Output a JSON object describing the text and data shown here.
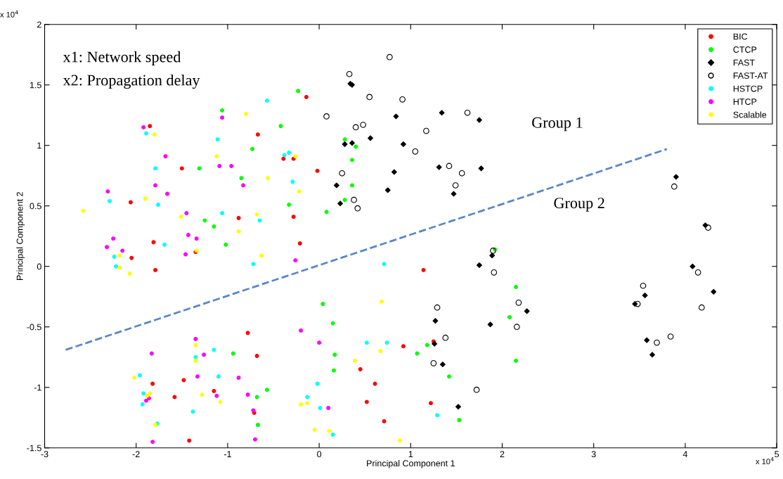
{
  "chart_data": {
    "type": "scatter",
    "xlabel": "Principal Component 1",
    "ylabel": "Principal Component 2",
    "xlim": [
      -3,
      5
    ],
    "xticks": [
      -3,
      -2,
      -1,
      0,
      1,
      2,
      3,
      4,
      5
    ],
    "ylim": [
      -1.5,
      2
    ],
    "yticks": [
      -1.5,
      -1,
      -0.5,
      0,
      0.5,
      1,
      1.5,
      2
    ],
    "grid": false,
    "legend": "top right",
    "marker": "circle",
    "annotations": [
      "x1: Network speed",
      "x2: Propagation delay",
      "Group 1",
      "Group 2",
      "x 10$^{4}$",
      "x 10$^{4}$"
    ],
    "series": [
      {
        "name": "BIC",
        "color": "#ff0000",
        "x": [
          -0.14,
          -1.85,
          -1.5,
          -0.88,
          -2.06,
          -1.81,
          -2.05,
          -1.79,
          -1.35,
          -0.67,
          -0.39,
          -0.28,
          -0.28,
          -0.02,
          -0.21,
          1.14,
          -0.78,
          -0.68,
          -1.82,
          -1.48,
          -1.15,
          -1.58,
          -0.71,
          -1.42,
          0.92,
          0.45,
          0.61,
          0.52,
          0.71,
          1.22,
          1.25
        ],
        "values": [
          1.4,
          1.16,
          0.81,
          0.4,
          0.53,
          0.2,
          0.07,
          -0.03,
          0.12,
          1.09,
          0.89,
          0.89,
          0.41,
          0.79,
          0.19,
          -0.03,
          -0.55,
          -0.74,
          -0.97,
          -0.94,
          -1.03,
          -1.08,
          -1.21,
          -1.44,
          -0.66,
          -0.85,
          -0.97,
          -1.12,
          -1.28,
          -1.13,
          -0.62
        ]
      },
      {
        "name": "CTCP",
        "color": "#00ff00",
        "x": [
          -1.06,
          -0.42,
          -0.73,
          -1.31,
          -0.85,
          -0.33,
          -1.25,
          -1.15,
          -1.02,
          -0.23,
          0.28,
          0.4,
          0.36,
          0.36,
          0.28,
          0.08,
          1.92,
          -0.94,
          -0.57,
          -0.68,
          -0.67,
          0.04,
          0.15,
          0.17,
          0.16,
          1.18,
          1.07,
          1.42,
          1.53,
          2.15,
          2.08,
          2.15
        ],
        "values": [
          1.29,
          1.16,
          0.97,
          0.81,
          0.73,
          0.51,
          0.38,
          0.33,
          0.18,
          1.45,
          1.05,
          0.99,
          0.88,
          0.67,
          0.55,
          0.45,
          0.14,
          -0.72,
          -1.02,
          -1.08,
          -1.31,
          -0.31,
          -0.47,
          -0.73,
          -0.86,
          -0.65,
          -0.72,
          -0.91,
          -1.27,
          -0.17,
          -0.42,
          -0.78
        ]
      },
      {
        "name": "FAST",
        "color": "#000000",
        "marker": "diamond",
        "x": [
          0.34,
          0.36,
          0.84,
          1.34,
          1.75,
          0.56,
          0.28,
          0.36,
          0.92,
          0.82,
          1.31,
          1.77,
          0.75,
          0.19,
          0.23,
          1.47,
          1.89,
          1.75,
          3.9,
          4.22,
          4.08,
          4.31,
          3.56,
          3.45,
          2.27,
          3.58,
          3.64,
          1.27,
          1.26,
          1.35,
          1.87,
          1.52
        ],
        "values": [
          1.51,
          1.5,
          1.24,
          1.27,
          1.21,
          1.06,
          1.01,
          1.02,
          1.01,
          0.78,
          0.82,
          0.81,
          0.63,
          0.67,
          0.52,
          0.6,
          0.09,
          0.01,
          0.74,
          0.34,
          0.0,
          -0.21,
          -0.24,
          -0.31,
          -0.37,
          -0.61,
          -0.73,
          -0.45,
          -0.64,
          -0.81,
          -0.48,
          -1.16
        ]
      },
      {
        "name": "FAST-AT",
        "color": "#000000",
        "marker": "circle",
        "x": [
          0.77,
          0.33,
          0.55,
          0.91,
          1.62,
          0.08,
          0.48,
          0.4,
          1.17,
          1.05,
          1.42,
          1.56,
          0.25,
          1.49,
          0.38,
          0.42,
          1.9,
          1.91,
          3.88,
          4.25,
          4.14,
          3.54,
          3.48,
          4.18,
          3.84,
          3.69,
          2.18,
          1.29,
          1.38,
          1.25,
          2.16,
          1.72
        ],
        "values": [
          1.73,
          1.59,
          1.4,
          1.38,
          1.27,
          1.24,
          1.17,
          1.15,
          1.12,
          0.95,
          0.83,
          0.77,
          0.77,
          0.67,
          0.55,
          0.48,
          0.13,
          -0.05,
          0.66,
          0.32,
          -0.05,
          -0.16,
          -0.31,
          -0.34,
          -0.58,
          -0.63,
          -0.3,
          -0.34,
          -0.59,
          -0.8,
          -0.5,
          -1.02
        ]
      },
      {
        "name": "HSTCP",
        "color": "#00ffff",
        "x": [
          -0.57,
          -1.89,
          -1.11,
          -0.38,
          -0.33,
          -1.79,
          -0.29,
          -2.29,
          -1.76,
          -1.06,
          -0.65,
          -1.69,
          -2.24,
          -2.22,
          -0.72,
          0.71,
          -1.15,
          -1.35,
          -1.96,
          -1.1,
          -1.92,
          -1.93,
          -1.38,
          -1.77,
          -0.02,
          -0.13,
          0.01,
          0.15,
          0.52,
          0.74,
          1.29
        ],
        "values": [
          1.37,
          1.1,
          1.05,
          0.92,
          0.94,
          0.81,
          0.7,
          0.54,
          0.51,
          0.44,
          0.38,
          0.18,
          0.08,
          0.0,
          0.02,
          0.02,
          -0.69,
          -0.75,
          -0.9,
          -0.91,
          -1.05,
          -1.14,
          -1.2,
          -1.3,
          -0.97,
          -1.08,
          -1.17,
          -1.39,
          -0.63,
          -0.63,
          -1.23
        ]
      },
      {
        "name": "HTCP",
        "color": "#ff00ff",
        "x": [
          -1.92,
          -1.06,
          -1.68,
          -1.09,
          -0.96,
          -1.79,
          -0.83,
          -2.31,
          -1.66,
          -1.45,
          -1.43,
          -1.34,
          -2.25,
          -2.32,
          -2.15,
          -1.46,
          -0.26,
          -1.35,
          -1.83,
          -1.26,
          -1.33,
          -0.88,
          -1.86,
          -1.89,
          -1.12,
          -0.78,
          -0.72,
          -1.82,
          -0.7,
          -0.2,
          0.0,
          0.1
        ],
        "values": [
          1.15,
          1.23,
          0.91,
          0.83,
          0.83,
          0.67,
          0.67,
          0.62,
          0.6,
          0.44,
          0.26,
          0.23,
          0.23,
          0.16,
          0.13,
          0.1,
          0.05,
          -0.6,
          -0.72,
          -0.73,
          -0.91,
          -0.92,
          -1.09,
          -1.11,
          -1.07,
          -1.06,
          -1.19,
          -1.45,
          -1.43,
          -0.53,
          -0.63,
          -1.17
        ]
      },
      {
        "name": "Scalable",
        "color": "#ffff00",
        "x": [
          -0.8,
          -1.8,
          -1.12,
          -0.56,
          -2.58,
          -1.9,
          -1.51,
          -0.68,
          -0.88,
          -2.18,
          -2.18,
          -2.07,
          -1.34,
          -0.63,
          -0.26,
          -0.22,
          -1.35,
          -1.35,
          -2.02,
          -1.85,
          -1.88,
          -1.28,
          -1.08,
          -1.79,
          0.68,
          0.67,
          0.39,
          -0.2,
          -0.13,
          -0.05,
          0.11,
          0.88
        ],
        "values": [
          1.26,
          1.09,
          0.91,
          0.73,
          0.46,
          0.56,
          0.41,
          0.43,
          0.29,
          0.09,
          -0.01,
          -0.06,
          0.13,
          0.09,
          0.91,
          0.62,
          -0.65,
          -0.78,
          -0.92,
          -1.05,
          -1.07,
          -1.06,
          -1.12,
          -1.31,
          -0.29,
          -0.7,
          -0.78,
          -1.14,
          -1.13,
          -1.35,
          -1.36,
          -1.44
        ]
      },
      {
        "type": "line",
        "color": "#5b87c6",
        "line_style": "dashed",
        "marker": "none",
        "x": [
          -2.77,
          3.8
        ],
        "values": [
          -0.69,
          0.97
        ]
      }
    ]
  }
}
